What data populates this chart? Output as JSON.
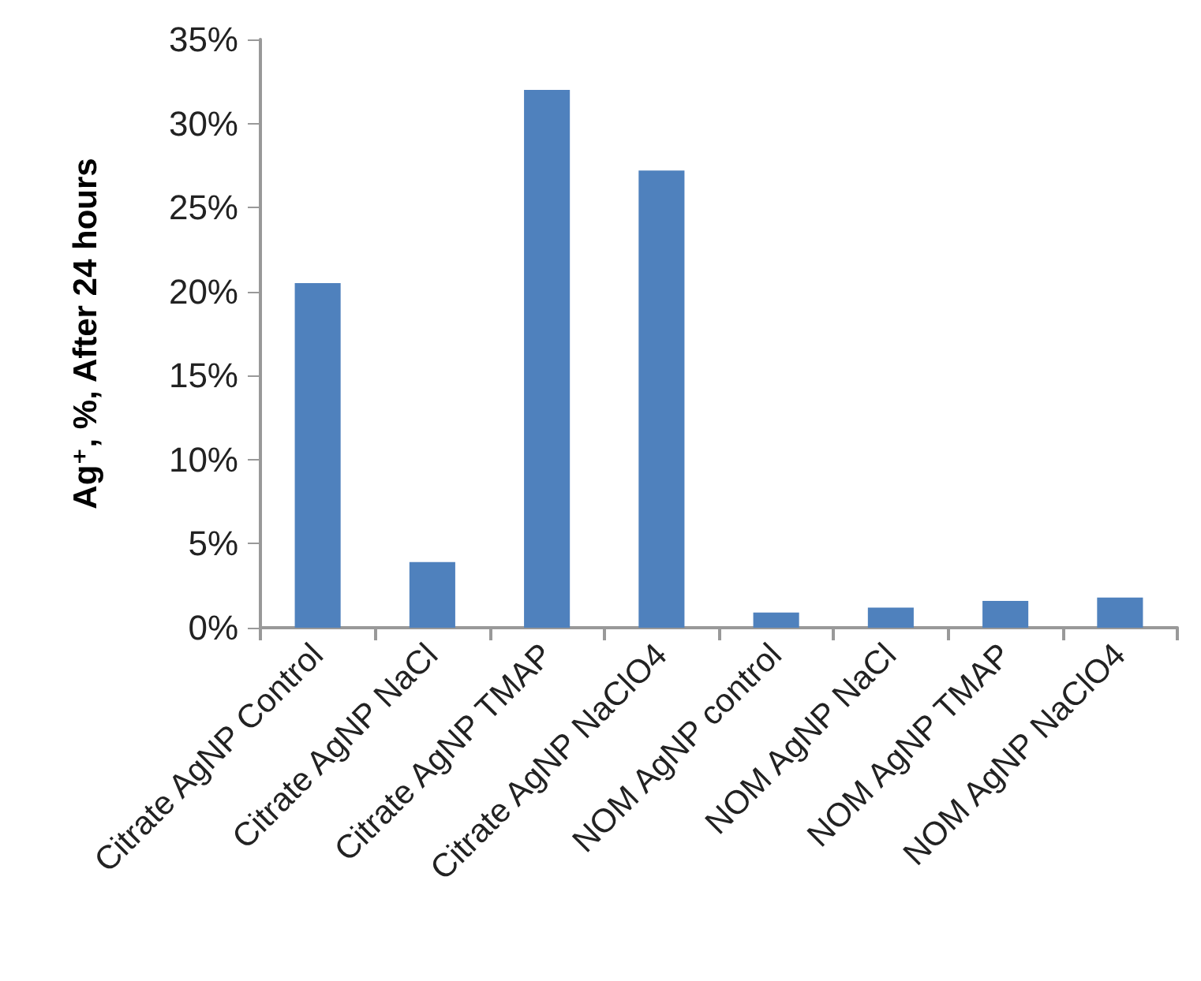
{
  "chart_data": {
    "type": "bar",
    "ylabel": "Ag⁺, %, After 24 hours",
    "categories": [
      "Citrate AgNP Control",
      "Citrate AgNP NaCl",
      "Citrate AgNP TMAP",
      "Citrate AgNP NaClO4",
      "NOM AgNP control",
      "NOM AgNP NaCl",
      "NOM AgNP TMAP",
      "NOM AgNP NaClO4"
    ],
    "values": [
      20.5,
      3.9,
      32,
      27.2,
      0.9,
      1.2,
      1.6,
      1.8
    ],
    "color": "#4f81bd",
    "ylim": [
      0,
      35
    ],
    "yticks": [
      {
        "value": 0,
        "label": "0%"
      },
      {
        "value": 5,
        "label": "5%"
      },
      {
        "value": 10,
        "label": "10%"
      },
      {
        "value": 15,
        "label": "15%"
      },
      {
        "value": 20,
        "label": "20%"
      },
      {
        "value": 25,
        "label": "25%"
      },
      {
        "value": 30,
        "label": "30%"
      },
      {
        "value": 35,
        "label": "35%"
      }
    ],
    "grid": false
  }
}
